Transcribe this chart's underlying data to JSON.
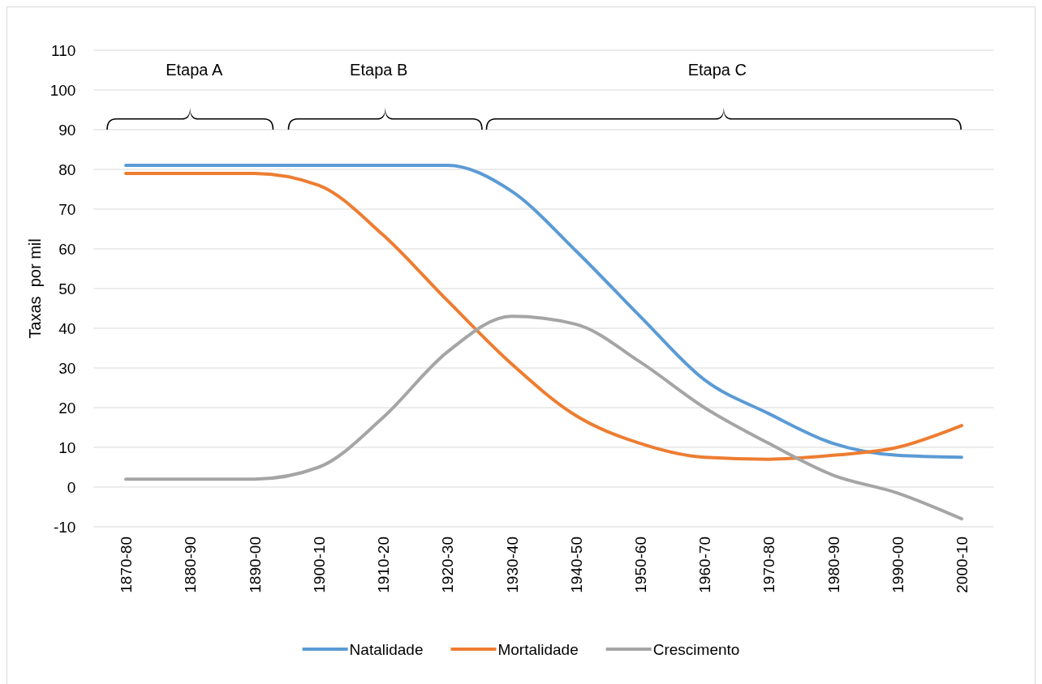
{
  "chart_data": {
    "type": "line",
    "ylabel": "Taxas  por mil",
    "categories": [
      "1870-80",
      "1880-90",
      "1890-00",
      "1900-10",
      "1910-20",
      "1920-30",
      "1930-40",
      "1940-50",
      "1950-60",
      "1960-70",
      "1970-80",
      "1980-90",
      "1990-00",
      "2000-10"
    ],
    "series": [
      {
        "name": "Natalidade",
        "color": "#5b9bd5",
        "values": [
          81,
          81,
          81,
          81,
          81,
          81,
          74.5,
          59.5,
          43,
          27,
          18.5,
          11,
          8,
          7.5
        ]
      },
      {
        "name": "Mortalidade",
        "color": "#ed7d31",
        "values": [
          79,
          79,
          79,
          76,
          63.5,
          47,
          31,
          18,
          11,
          7.5,
          7,
          8,
          10,
          15.5
        ]
      },
      {
        "name": "Crescimento",
        "color": "#a5a5a5",
        "values": [
          2,
          2,
          2,
          5,
          17.5,
          34,
          43,
          41,
          31.5,
          20,
          11,
          3,
          -1.5,
          -8
        ]
      }
    ],
    "ylim": [
      -10,
      110
    ],
    "yticks": [
      -10,
      0,
      10,
      20,
      30,
      40,
      50,
      60,
      70,
      80,
      90,
      100,
      110
    ],
    "grid": "y",
    "legend": "bottom",
    "marker": "none",
    "line_style": "solid",
    "annotations": [
      "Etapa A",
      "Etapa B",
      "Etapa C"
    ]
  }
}
